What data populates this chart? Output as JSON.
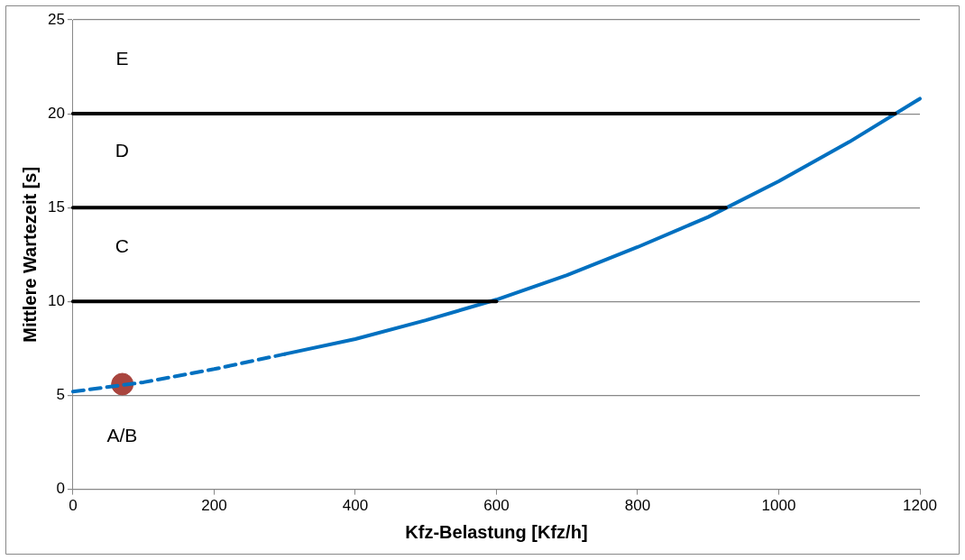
{
  "chart_data": {
    "type": "line",
    "xlabel": "Kfz-Belastung [Kfz/h]",
    "ylabel": "Mittlere Wartezeit [s]",
    "xlim": [
      0,
      1200
    ],
    "xticks": [
      0,
      200,
      400,
      600,
      800,
      1000,
      1200
    ],
    "ylim": [
      0,
      25
    ],
    "yticks": [
      0,
      5,
      10,
      15,
      20,
      25
    ],
    "grid": "y",
    "legend": false,
    "series": [
      {
        "type": "line",
        "color": "#000000",
        "marker": "none",
        "line_style": "solid",
        "x": [
          0,
          600
        ],
        "values": [
          10,
          10
        ]
      },
      {
        "type": "line",
        "color": "#000000",
        "marker": "none",
        "line_style": "solid",
        "x": [
          0,
          925
        ],
        "values": [
          15,
          15
        ]
      },
      {
        "type": "line",
        "color": "#000000",
        "marker": "none",
        "line_style": "solid",
        "x": [
          0,
          1165
        ],
        "values": [
          20,
          20
        ]
      },
      {
        "type": "line",
        "color": "#0070c0",
        "marker": "none",
        "line_style": "dashed",
        "x": [
          0,
          100,
          200,
          300
        ],
        "values": [
          5.2,
          5.7,
          6.4,
          7.2
        ]
      },
      {
        "type": "line",
        "color": "#0070c0",
        "marker": "none",
        "line_style": "solid",
        "x": [
          300,
          400,
          500,
          600,
          700,
          800,
          900,
          1000,
          1100,
          1200
        ],
        "values": [
          7.2,
          8.0,
          9.0,
          10.1,
          11.4,
          12.9,
          14.5,
          16.4,
          18.5,
          20.8
        ]
      },
      {
        "type": "scatter",
        "color": "#a9453e",
        "marker": "circle",
        "x": [
          70
        ],
        "values": [
          5.6
        ]
      }
    ],
    "annotations": [
      "E",
      "D",
      "C",
      "A/B"
    ]
  }
}
